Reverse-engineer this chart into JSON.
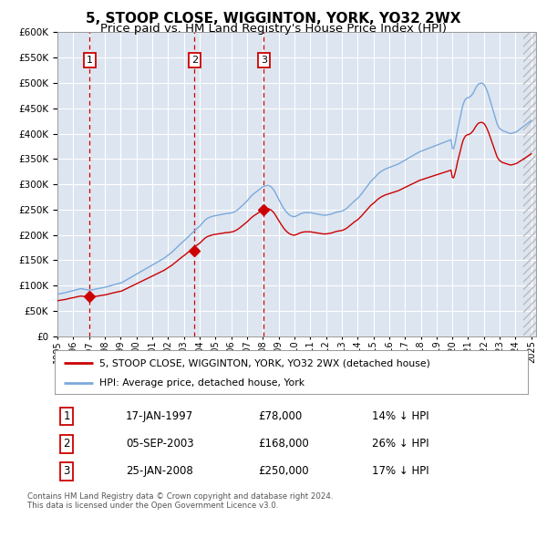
{
  "title": "5, STOOP CLOSE, WIGGINTON, YORK, YO32 2WX",
  "subtitle": "Price paid vs. HM Land Registry's House Price Index (HPI)",
  "title_fontsize": 11,
  "subtitle_fontsize": 9.5,
  "bg_color": "#dde5f0",
  "grid_color": "#ffffff",
  "ylim": [
    0,
    600000
  ],
  "yticks": [
    0,
    50000,
    100000,
    150000,
    200000,
    250000,
    300000,
    350000,
    400000,
    450000,
    500000,
    550000,
    600000
  ],
  "sale_dates": [
    1997.04,
    2003.67,
    2008.07
  ],
  "sale_prices": [
    78000,
    168000,
    250000
  ],
  "sale_labels": [
    "1",
    "2",
    "3"
  ],
  "sale_color": "#cc0000",
  "hpi_color": "#7aaadd",
  "legend_sale": "5, STOOP CLOSE, WIGGINTON, YORK, YO32 2WX (detached house)",
  "legend_hpi": "HPI: Average price, detached house, York",
  "table_rows": [
    [
      "1",
      "17-JAN-1997",
      "£78,000",
      "14% ↓ HPI"
    ],
    [
      "2",
      "05-SEP-2003",
      "£168,000",
      "26% ↓ HPI"
    ],
    [
      "3",
      "25-JAN-2008",
      "£250,000",
      "17% ↓ HPI"
    ]
  ],
  "footnote": "Contains HM Land Registry data © Crown copyright and database right 2024.\nThis data is licensed under the Open Government Licence v3.0.",
  "hpi_x": [
    1995.0,
    1995.083,
    1995.167,
    1995.25,
    1995.333,
    1995.417,
    1995.5,
    1995.583,
    1995.667,
    1995.75,
    1995.833,
    1995.917,
    1996.0,
    1996.083,
    1996.167,
    1996.25,
    1996.333,
    1996.417,
    1996.5,
    1996.583,
    1996.667,
    1996.75,
    1996.833,
    1996.917,
    1997.0,
    1997.083,
    1997.167,
    1997.25,
    1997.333,
    1997.417,
    1997.5,
    1997.583,
    1997.667,
    1997.75,
    1997.833,
    1997.917,
    1998.0,
    1998.083,
    1998.167,
    1998.25,
    1998.333,
    1998.417,
    1998.5,
    1998.583,
    1998.667,
    1998.75,
    1998.833,
    1998.917,
    1999.0,
    1999.083,
    1999.167,
    1999.25,
    1999.333,
    1999.417,
    1999.5,
    1999.583,
    1999.667,
    1999.75,
    1999.833,
    1999.917,
    2000.0,
    2000.083,
    2000.167,
    2000.25,
    2000.333,
    2000.417,
    2000.5,
    2000.583,
    2000.667,
    2000.75,
    2000.833,
    2000.917,
    2001.0,
    2001.083,
    2001.167,
    2001.25,
    2001.333,
    2001.417,
    2001.5,
    2001.583,
    2001.667,
    2001.75,
    2001.833,
    2001.917,
    2002.0,
    2002.083,
    2002.167,
    2002.25,
    2002.333,
    2002.417,
    2002.5,
    2002.583,
    2002.667,
    2002.75,
    2002.833,
    2002.917,
    2003.0,
    2003.083,
    2003.167,
    2003.25,
    2003.333,
    2003.417,
    2003.5,
    2003.583,
    2003.667,
    2003.75,
    2003.833,
    2003.917,
    2004.0,
    2004.083,
    2004.167,
    2004.25,
    2004.333,
    2004.417,
    2004.5,
    2004.583,
    2004.667,
    2004.75,
    2004.833,
    2004.917,
    2005.0,
    2005.083,
    2005.167,
    2005.25,
    2005.333,
    2005.417,
    2005.5,
    2005.583,
    2005.667,
    2005.75,
    2005.833,
    2005.917,
    2006.0,
    2006.083,
    2006.167,
    2006.25,
    2006.333,
    2006.417,
    2006.5,
    2006.583,
    2006.667,
    2006.75,
    2006.833,
    2006.917,
    2007.0,
    2007.083,
    2007.167,
    2007.25,
    2007.333,
    2007.417,
    2007.5,
    2007.583,
    2007.667,
    2007.75,
    2007.833,
    2007.917,
    2008.0,
    2008.083,
    2008.167,
    2008.25,
    2008.333,
    2008.417,
    2008.5,
    2008.583,
    2008.667,
    2008.75,
    2008.833,
    2008.917,
    2009.0,
    2009.083,
    2009.167,
    2009.25,
    2009.333,
    2009.417,
    2009.5,
    2009.583,
    2009.667,
    2009.75,
    2009.833,
    2009.917,
    2010.0,
    2010.083,
    2010.167,
    2010.25,
    2010.333,
    2010.417,
    2010.5,
    2010.583,
    2010.667,
    2010.75,
    2010.833,
    2010.917,
    2011.0,
    2011.083,
    2011.167,
    2011.25,
    2011.333,
    2011.417,
    2011.5,
    2011.583,
    2011.667,
    2011.75,
    2011.833,
    2011.917,
    2012.0,
    2012.083,
    2012.167,
    2012.25,
    2012.333,
    2012.417,
    2012.5,
    2012.583,
    2012.667,
    2012.75,
    2012.833,
    2012.917,
    2013.0,
    2013.083,
    2013.167,
    2013.25,
    2013.333,
    2013.417,
    2013.5,
    2013.583,
    2013.667,
    2013.75,
    2013.833,
    2013.917,
    2014.0,
    2014.083,
    2014.167,
    2014.25,
    2014.333,
    2014.417,
    2014.5,
    2014.583,
    2014.667,
    2014.75,
    2014.833,
    2014.917,
    2015.0,
    2015.083,
    2015.167,
    2015.25,
    2015.333,
    2015.417,
    2015.5,
    2015.583,
    2015.667,
    2015.75,
    2015.833,
    2015.917,
    2016.0,
    2016.083,
    2016.167,
    2016.25,
    2016.333,
    2016.417,
    2016.5,
    2016.583,
    2016.667,
    2016.75,
    2016.833,
    2016.917,
    2017.0,
    2017.083,
    2017.167,
    2017.25,
    2017.333,
    2017.417,
    2017.5,
    2017.583,
    2017.667,
    2017.75,
    2017.833,
    2017.917,
    2018.0,
    2018.083,
    2018.167,
    2018.25,
    2018.333,
    2018.417,
    2018.5,
    2018.583,
    2018.667,
    2018.75,
    2018.833,
    2018.917,
    2019.0,
    2019.083,
    2019.167,
    2019.25,
    2019.333,
    2019.417,
    2019.5,
    2019.583,
    2019.667,
    2019.75,
    2019.833,
    2019.917,
    2020.0,
    2020.083,
    2020.167,
    2020.25,
    2020.333,
    2020.417,
    2020.5,
    2020.583,
    2020.667,
    2020.75,
    2020.833,
    2020.917,
    2021.0,
    2021.083,
    2021.167,
    2021.25,
    2021.333,
    2021.417,
    2021.5,
    2021.583,
    2021.667,
    2021.75,
    2021.833,
    2021.917,
    2022.0,
    2022.083,
    2022.167,
    2022.25,
    2022.333,
    2022.417,
    2022.5,
    2022.583,
    2022.667,
    2022.75,
    2022.833,
    2022.917,
    2023.0,
    2023.083,
    2023.167,
    2023.25,
    2023.333,
    2023.417,
    2023.5,
    2023.583,
    2023.667,
    2023.75,
    2023.833,
    2023.917,
    2024.0,
    2024.083,
    2024.167,
    2024.25,
    2024.333,
    2024.417,
    2024.5,
    2024.583,
    2024.667,
    2024.75,
    2024.833,
    2024.917,
    2025.0
  ],
  "hpi_y": [
    83000,
    83500,
    84000,
    84500,
    85000,
    85500,
    86000,
    86800,
    87500,
    88200,
    89000,
    89500,
    90000,
    90800,
    91500,
    92200,
    93000,
    93500,
    94000,
    93500,
    93000,
    92500,
    92000,
    91500,
    91000,
    91200,
    91500,
    92000,
    92500,
    93000,
    93500,
    94000,
    94500,
    95000,
    95500,
    96000,
    96500,
    97200,
    98000,
    98800,
    99500,
    100200,
    101000,
    101800,
    102500,
    103200,
    104000,
    104500,
    105000,
    106000,
    107500,
    109000,
    110500,
    112000,
    113500,
    115000,
    116500,
    118000,
    119500,
    121000,
    122500,
    124000,
    125500,
    127000,
    128500,
    130000,
    131500,
    133000,
    134500,
    136000,
    137500,
    139000,
    140500,
    142000,
    143500,
    145000,
    146500,
    148000,
    149500,
    151000,
    152500,
    154000,
    156000,
    158000,
    160000,
    162000,
    164000,
    166000,
    168500,
    171000,
    173500,
    176000,
    178500,
    181000,
    183500,
    186000,
    188000,
    190500,
    193000,
    195500,
    198000,
    200500,
    203000,
    205500,
    208000,
    210500,
    213000,
    215000,
    217000,
    220000,
    223000,
    226000,
    229000,
    231000,
    233000,
    234000,
    235000,
    236000,
    237000,
    237500,
    238000,
    238500,
    239000,
    239500,
    240000,
    240500,
    241000,
    241500,
    242000,
    242200,
    242500,
    243000,
    243500,
    244000,
    245000,
    246500,
    248000,
    250000,
    252000,
    254500,
    257000,
    259500,
    262000,
    264500,
    267000,
    270000,
    273000,
    276000,
    278500,
    281000,
    283000,
    285000,
    287000,
    289000,
    291000,
    293000,
    295000,
    296000,
    297000,
    297500,
    298000,
    297000,
    295500,
    293000,
    290000,
    286000,
    281000,
    276000,
    271000,
    266000,
    261000,
    256500,
    252000,
    248500,
    245000,
    242500,
    240000,
    238500,
    237000,
    236500,
    236000,
    237000,
    238000,
    239500,
    241000,
    242000,
    243000,
    243500,
    244000,
    244000,
    244000,
    244000,
    244000,
    243500,
    243000,
    242500,
    242000,
    241500,
    241000,
    240500,
    240000,
    239500,
    239000,
    239000,
    239000,
    239500,
    240000,
    240500,
    241000,
    242000,
    243000,
    244000,
    245000,
    245500,
    246000,
    246500,
    247000,
    248000,
    249500,
    251000,
    253000,
    255500,
    258000,
    260500,
    263000,
    265500,
    268000,
    270000,
    272000,
    275000,
    278000,
    281000,
    284500,
    288000,
    291500,
    295000,
    298500,
    302000,
    305500,
    308000,
    310500,
    313000,
    316000,
    319000,
    321500,
    323500,
    325500,
    327000,
    328500,
    330000,
    331000,
    332000,
    333000,
    334000,
    335000,
    336000,
    337000,
    338000,
    339000,
    340000,
    341500,
    343000,
    344500,
    346000,
    347500,
    349000,
    350500,
    352000,
    353500,
    355000,
    356500,
    358000,
    359500,
    361000,
    362500,
    364000,
    365000,
    366000,
    367000,
    368000,
    369000,
    370000,
    371000,
    372000,
    373000,
    374000,
    375000,
    376000,
    377000,
    378000,
    379000,
    380000,
    381000,
    382000,
    383000,
    384000,
    385000,
    386000,
    387000,
    388000,
    371000,
    370000,
    380000,
    393000,
    408000,
    420000,
    432000,
    445000,
    456000,
    463000,
    468000,
    470000,
    471000,
    472000,
    474000,
    477000,
    481000,
    486000,
    491000,
    495000,
    498000,
    499000,
    499500,
    499000,
    497000,
    493000,
    487000,
    480000,
    472000,
    463000,
    454000,
    445000,
    436000,
    427000,
    419000,
    414000,
    410000,
    408000,
    406000,
    405000,
    404000,
    403000,
    402000,
    401000,
    400000,
    400500,
    401000,
    402000,
    403000,
    404000,
    406000,
    408000,
    410000,
    412000,
    414000,
    416000,
    418000,
    420000,
    422000,
    424000,
    426000
  ],
  "xtick_years": [
    1995,
    1996,
    1997,
    1998,
    1999,
    2000,
    2001,
    2002,
    2003,
    2004,
    2005,
    2006,
    2007,
    2008,
    2009,
    2010,
    2011,
    2012,
    2013,
    2014,
    2015,
    2016,
    2017,
    2018,
    2019,
    2020,
    2021,
    2022,
    2023,
    2024,
    2025
  ]
}
